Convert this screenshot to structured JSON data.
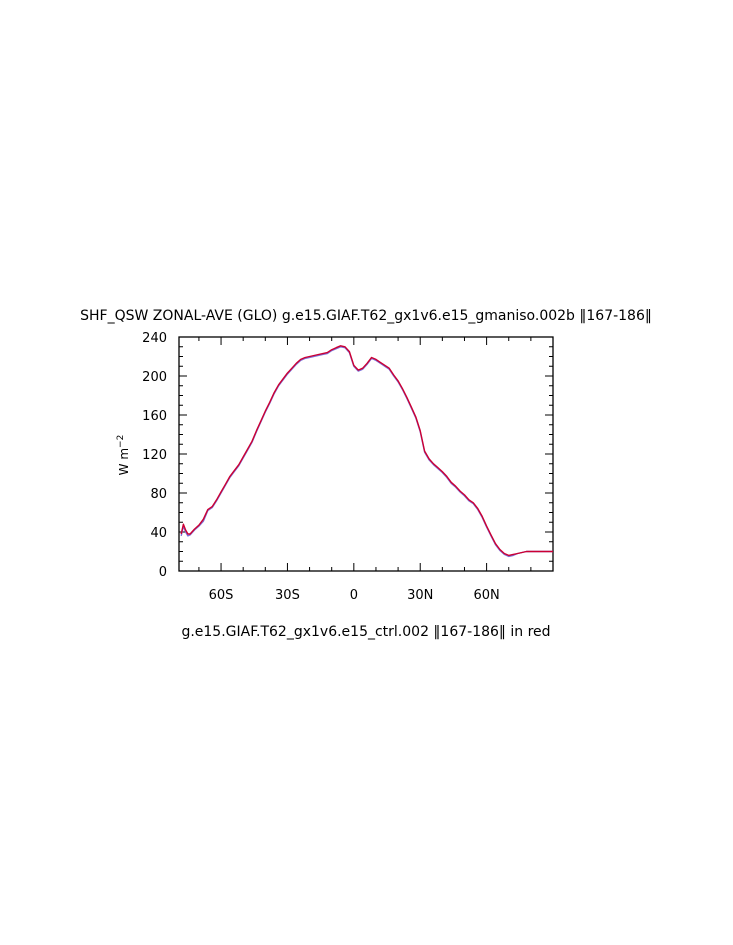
{
  "chart_data": {
    "type": "line",
    "title": "SHF_QSW ZONAL-AVE (GLO) g.e15.GIAF.T62_gx1v6.e15_gmaniso.002b ‖167-186‖",
    "ylabel_base": "W m",
    "ylabel_exp": "−2",
    "footer": "g.e15.GIAF.T62_gx1v6.e15_ctrl.002 ‖167-186‖ in red",
    "xlim": [
      -79,
      90
    ],
    "ylim": [
      0,
      240
    ],
    "x_ticks": [
      {
        "value": -60,
        "label": "60S"
      },
      {
        "value": -30,
        "label": "30S"
      },
      {
        "value": 0,
        "label": "0"
      },
      {
        "value": 30,
        "label": "30N"
      },
      {
        "value": 60,
        "label": "60N"
      }
    ],
    "y_ticks": [
      {
        "value": 0,
        "label": "0"
      },
      {
        "value": 40,
        "label": "40"
      },
      {
        "value": 80,
        "label": "80"
      },
      {
        "value": 120,
        "label": "120"
      },
      {
        "value": 160,
        "label": "160"
      },
      {
        "value": 200,
        "label": "200"
      },
      {
        "value": 240,
        "label": "240"
      }
    ],
    "colors": {
      "series": "#7b6fd8",
      "control": "#cc0033"
    },
    "series": [
      {
        "x": [
          -78,
          -77,
          -76,
          -75,
          -74,
          -72,
          -70,
          -68,
          -66,
          -64,
          -62,
          -60,
          -58,
          -56,
          -54,
          -52,
          -50,
          -48,
          -46,
          -44,
          -42,
          -40,
          -38,
          -36,
          -34,
          -32,
          -30,
          -28,
          -26,
          -24,
          -22,
          -20,
          -18,
          -16,
          -14,
          -12,
          -10,
          -8,
          -6,
          -4,
          -2,
          0,
          2,
          4,
          6,
          8,
          10,
          12,
          14,
          16,
          18,
          20,
          22,
          24,
          26,
          28,
          30,
          32,
          34,
          36,
          38,
          40,
          42,
          44,
          46,
          48,
          50,
          52,
          54,
          56,
          58,
          60,
          62,
          64,
          66,
          68,
          70,
          72,
          74,
          76,
          78,
          80,
          82,
          84,
          86,
          88,
          90
        ],
        "y": [
          36,
          46,
          40,
          36,
          37,
          42,
          46,
          51,
          62,
          65,
          72,
          80,
          88,
          96,
          102,
          108,
          116,
          124,
          132,
          143,
          153,
          163,
          172,
          182,
          190,
          196,
          202,
          207,
          212,
          216,
          218,
          219,
          220,
          221,
          222,
          223,
          226,
          228,
          230,
          229,
          224,
          210,
          205,
          207,
          212,
          218,
          216,
          213,
          210,
          207,
          200,
          194,
          186,
          177,
          167,
          157,
          143,
          122,
          114,
          109,
          105,
          101,
          96,
          90,
          86,
          81,
          77,
          72,
          69,
          63,
          55,
          45,
          36,
          27,
          21,
          17,
          15,
          16,
          18,
          19,
          20,
          20,
          20,
          20,
          20,
          20,
          20
        ]
      },
      {
        "x": [
          -78,
          -77,
          -76,
          -75,
          -74,
          -72,
          -70,
          -68,
          -66,
          -64,
          -62,
          -60,
          -58,
          -56,
          -54,
          -52,
          -50,
          -48,
          -46,
          -44,
          -42,
          -40,
          -38,
          -36,
          -34,
          -32,
          -30,
          -28,
          -26,
          -24,
          -22,
          -20,
          -18,
          -16,
          -14,
          -12,
          -10,
          -8,
          -6,
          -4,
          -2,
          0,
          2,
          4,
          6,
          8,
          10,
          12,
          14,
          16,
          18,
          20,
          22,
          24,
          26,
          28,
          30,
          32,
          34,
          36,
          38,
          40,
          42,
          44,
          46,
          48,
          50,
          52,
          54,
          56,
          58,
          60,
          62,
          64,
          66,
          68,
          70,
          72,
          74,
          76,
          78,
          80,
          82,
          84,
          86,
          88,
          90
        ],
        "y": [
          38,
          48,
          42,
          38,
          38,
          43,
          47,
          53,
          63,
          66,
          73,
          81,
          89,
          97,
          103,
          109,
          117,
          125,
          133,
          144,
          154,
          164,
          173,
          183,
          191,
          197,
          203,
          208,
          213,
          217,
          219,
          220,
          221,
          222,
          223,
          224,
          227,
          229,
          231,
          230,
          225,
          211,
          206,
          208,
          213,
          219,
          217,
          214,
          211,
          208,
          201,
          195,
          187,
          178,
          168,
          158,
          144,
          123,
          115,
          110,
          106,
          102,
          97,
          91,
          87,
          82,
          78,
          73,
          70,
          64,
          56,
          46,
          37,
          28,
          22,
          18,
          16,
          17,
          18,
          19,
          20,
          20,
          20,
          20,
          20,
          20,
          20
        ]
      }
    ]
  }
}
